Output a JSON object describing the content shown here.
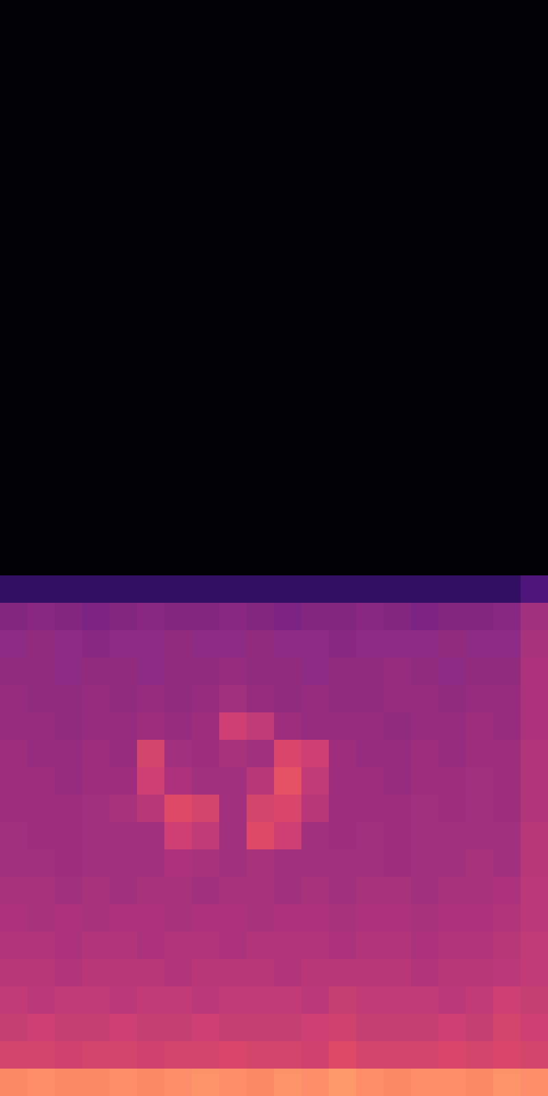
{
  "chart_data": {
    "type": "heatmap",
    "tick_labels": false,
    "zlim": [
      -80,
      0
    ],
    "z": [
      [
        -80,
        -80,
        -80,
        -80,
        -80,
        -80,
        -80,
        -80,
        -80,
        -80,
        -80,
        -80,
        -80,
        -80,
        -80,
        -80,
        -80,
        -80,
        -80,
        -80
      ],
      [
        -80,
        -80,
        -80,
        -80,
        -80,
        -80,
        -80,
        -80,
        -80,
        -80,
        -80,
        -80,
        -80,
        -80,
        -80,
        -80,
        -80,
        -80,
        -80,
        -80
      ],
      [
        -80,
        -80,
        -80,
        -80,
        -80,
        -80,
        -80,
        -80,
        -80,
        -80,
        -80,
        -80,
        -80,
        -80,
        -80,
        -80,
        -80,
        -80,
        -80,
        -80
      ],
      [
        -80,
        -80,
        -80,
        -80,
        -80,
        -80,
        -80,
        -80,
        -80,
        -80,
        -80,
        -80,
        -80,
        -80,
        -80,
        -80,
        -80,
        -80,
        -80,
        -80
      ],
      [
        -80,
        -80,
        -80,
        -80,
        -80,
        -80,
        -80,
        -80,
        -80,
        -80,
        -80,
        -80,
        -80,
        -80,
        -80,
        -80,
        -80,
        -80,
        -80,
        -80
      ],
      [
        -80,
        -80,
        -80,
        -80,
        -80,
        -80,
        -80,
        -80,
        -80,
        -80,
        -80,
        -80,
        -80,
        -80,
        -80,
        -80,
        -80,
        -80,
        -80,
        -80
      ],
      [
        -80,
        -80,
        -80,
        -80,
        -80,
        -80,
        -80,
        -80,
        -80,
        -80,
        -80,
        -80,
        -80,
        -80,
        -80,
        -80,
        -80,
        -80,
        -80,
        -80
      ],
      [
        -80,
        -80,
        -80,
        -80,
        -80,
        -80,
        -80,
        -80,
        -80,
        -80,
        -80,
        -80,
        -80,
        -80,
        -80,
        -80,
        -80,
        -80,
        -80,
        -80
      ],
      [
        -80,
        -80,
        -80,
        -80,
        -80,
        -80,
        -80,
        -80,
        -80,
        -80,
        -80,
        -80,
        -80,
        -80,
        -80,
        -80,
        -80,
        -80,
        -80,
        -80
      ],
      [
        -80,
        -80,
        -80,
        -80,
        -80,
        -80,
        -80,
        -80,
        -80,
        -80,
        -80,
        -80,
        -80,
        -80,
        -80,
        -80,
        -80,
        -80,
        -80,
        -80
      ],
      [
        -80,
        -80,
        -80,
        -80,
        -80,
        -80,
        -80,
        -80,
        -80,
        -80,
        -80,
        -80,
        -80,
        -80,
        -80,
        -80,
        -80,
        -80,
        -80,
        -80
      ],
      [
        -80,
        -80,
        -80,
        -80,
        -80,
        -80,
        -80,
        -80,
        -80,
        -80,
        -80,
        -80,
        -80,
        -80,
        -80,
        -80,
        -80,
        -80,
        -80,
        -80
      ],
      [
        -80,
        -80,
        -80,
        -80,
        -80,
        -80,
        -80,
        -80,
        -80,
        -80,
        -80,
        -80,
        -80,
        -80,
        -80,
        -80,
        -80,
        -80,
        -80,
        -80
      ],
      [
        -80,
        -80,
        -80,
        -80,
        -80,
        -80,
        -80,
        -80,
        -80,
        -80,
        -80,
        -80,
        -80,
        -80,
        -80,
        -80,
        -80,
        -80,
        -80,
        -80
      ],
      [
        -80,
        -80,
        -80,
        -80,
        -80,
        -80,
        -80,
        -80,
        -80,
        -80,
        -80,
        -80,
        -80,
        -80,
        -80,
        -80,
        -80,
        -80,
        -80,
        -80
      ],
      [
        -80,
        -80,
        -80,
        -80,
        -80,
        -80,
        -80,
        -80,
        -80,
        -80,
        -80,
        -80,
        -80,
        -80,
        -80,
        -80,
        -80,
        -80,
        -80,
        -80
      ],
      [
        -80,
        -80,
        -80,
        -80,
        -80,
        -80,
        -80,
        -80,
        -80,
        -80,
        -80,
        -80,
        -80,
        -80,
        -80,
        -80,
        -80,
        -80,
        -80,
        -80
      ],
      [
        -80,
        -80,
        -80,
        -80,
        -80,
        -80,
        -80,
        -80,
        -80,
        -80,
        -80,
        -80,
        -80,
        -80,
        -80,
        -80,
        -80,
        -80,
        -80,
        -80
      ],
      [
        -80,
        -80,
        -80,
        -80,
        -80,
        -80,
        -80,
        -80,
        -80,
        -80,
        -80,
        -80,
        -80,
        -80,
        -80,
        -80,
        -80,
        -80,
        -80,
        -80
      ],
      [
        -80,
        -80,
        -80,
        -80,
        -80,
        -80,
        -80,
        -80,
        -80,
        -80,
        -80,
        -80,
        -80,
        -80,
        -80,
        -80,
        -80,
        -80,
        -80,
        -80
      ],
      [
        -80,
        -80,
        -80,
        -80,
        -80,
        -80,
        -80,
        -80,
        -80,
        -80,
        -80,
        -80,
        -80,
        -80,
        -80,
        -80,
        -80,
        -80,
        -80,
        -80
      ],
      [
        -66,
        -66,
        -66,
        -66,
        -66,
        -66,
        -66,
        -66,
        -66,
        -66,
        -66,
        -66,
        -66,
        -66,
        -66,
        -66,
        -66,
        -66,
        -66,
        -60
      ],
      [
        -50,
        -49,
        -50,
        -51,
        -50,
        -49,
        -50,
        -50,
        -49,
        -50,
        -51,
        -50,
        -50,
        -49,
        -50,
        -51,
        -50,
        -50,
        -49,
        -44
      ],
      [
        -48,
        -47,
        -48,
        -49,
        -48,
        -48,
        -47,
        -48,
        -48,
        -47,
        -48,
        -48,
        -49,
        -48,
        -48,
        -48,
        -47,
        -48,
        -48,
        -43
      ],
      [
        -47,
        -47,
        -48,
        -47,
        -47,
        -48,
        -47,
        -47,
        -46,
        -47,
        -47,
        -48,
        -47,
        -47,
        -46,
        -47,
        -48,
        -47,
        -47,
        -42
      ],
      [
        -46,
        -47,
        -47,
        -46,
        -47,
        -46,
        -47,
        -46,
        -44,
        -46,
        -47,
        -46,
        -47,
        -47,
        -46,
        -46,
        -47,
        -46,
        -46,
        -42
      ],
      [
        -46,
        -46,
        -47,
        -46,
        -46,
        -45,
        -46,
        -45,
        -36,
        -38,
        -45,
        -46,
        -46,
        -46,
        -47,
        -46,
        -46,
        -45,
        -46,
        -42
      ],
      [
        -45,
        -46,
        -46,
        -45,
        -46,
        -34,
        -44,
        -45,
        -43,
        -44,
        -33,
        -36,
        -45,
        -46,
        -46,
        -45,
        -46,
        -45,
        -45,
        -41
      ],
      [
        -45,
        -45,
        -46,
        -45,
        -45,
        -36,
        -42,
        -44,
        -44,
        -40,
        -30,
        -38,
        -45,
        -45,
        -46,
        -45,
        -45,
        -44,
        -45,
        -41
      ],
      [
        -45,
        -45,
        -45,
        -44,
        -43,
        -40,
        -32,
        -34,
        -44,
        -34,
        -33,
        -40,
        -45,
        -45,
        -45,
        -44,
        -45,
        -44,
        -45,
        -41
      ],
      [
        -44,
        -45,
        -45,
        -44,
        -44,
        -44,
        -36,
        -38,
        -44,
        -32,
        -36,
        -44,
        -45,
        -44,
        -45,
        -44,
        -44,
        -44,
        -44,
        -40
      ],
      [
        -44,
        -44,
        -45,
        -44,
        -44,
        -44,
        -42,
        -43,
        -44,
        -43,
        -44,
        -44,
        -44,
        -44,
        -45,
        -44,
        -44,
        -43,
        -44,
        -40
      ],
      [
        -43,
        -43,
        -44,
        -43,
        -44,
        -43,
        -43,
        -44,
        -43,
        -43,
        -44,
        -43,
        -44,
        -43,
        -43,
        -44,
        -43,
        -43,
        -42,
        -39
      ],
      [
        -42,
        -43,
        -42,
        -43,
        -42,
        -42,
        -43,
        -42,
        -42,
        -43,
        -42,
        -42,
        -43,
        -42,
        -42,
        -43,
        -42,
        -42,
        -41,
        -39
      ],
      [
        -41,
        -41,
        -42,
        -41,
        -41,
        -42,
        -41,
        -41,
        -42,
        -41,
        -41,
        -41,
        -42,
        -41,
        -41,
        -42,
        -41,
        -41,
        -40,
        -38
      ],
      [
        -40,
        -40,
        -41,
        -40,
        -40,
        -40,
        -41,
        -40,
        -40,
        -40,
        -41,
        -40,
        -40,
        -40,
        -40,
        -41,
        -40,
        -40,
        -39,
        -38
      ],
      [
        -38,
        -39,
        -38,
        -38,
        -39,
        -38,
        -38,
        -39,
        -38,
        -38,
        -38,
        -39,
        -37,
        -38,
        -38,
        -38,
        -39,
        -38,
        -36,
        -37
      ],
      [
        -37,
        -36,
        -37,
        -37,
        -36,
        -37,
        -37,
        -36,
        -37,
        -37,
        -37,
        -36,
        -35,
        -37,
        -37,
        -37,
        -36,
        -37,
        -34,
        -36
      ],
      [
        -34,
        -34,
        -35,
        -34,
        -34,
        -35,
        -34,
        -34,
        -33,
        -34,
        -34,
        -35,
        -32,
        -34,
        -34,
        -34,
        -33,
        -34,
        -33,
        -34
      ],
      [
        -20,
        -19,
        -20,
        -20,
        -19,
        -20,
        -19,
        -18,
        -19,
        -20,
        -18,
        -19,
        -17,
        -19,
        -20,
        -19,
        -19,
        -20,
        -18,
        -19
      ]
    ]
  }
}
